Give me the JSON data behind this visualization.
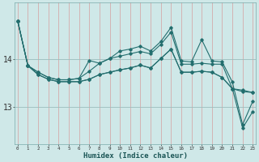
{
  "xlabel": "Humidex (Indice chaleur)",
  "background_color": "#cfe8e8",
  "line_color": "#236e6e",
  "vgrid_color": "#d4aaaa",
  "hgrid_color": "#9bbcbc",
  "x": [
    0,
    1,
    2,
    3,
    4,
    5,
    6,
    7,
    8,
    9,
    10,
    11,
    12,
    13,
    14,
    15,
    16,
    17,
    18,
    19,
    20,
    21,
    22,
    23
  ],
  "series": [
    [
      14.82,
      13.87,
      13.73,
      13.62,
      13.57,
      13.57,
      13.6,
      13.75,
      13.92,
      14.02,
      14.07,
      14.12,
      14.17,
      14.12,
      14.32,
      14.58,
      13.9,
      13.9,
      13.92,
      13.9,
      13.9,
      13.38,
      13.35,
      13.3
    ],
    [
      14.82,
      13.87,
      13.73,
      13.62,
      13.57,
      13.57,
      13.6,
      13.98,
      13.92,
      14.02,
      14.18,
      14.22,
      14.28,
      14.18,
      14.38,
      14.68,
      13.97,
      13.95,
      14.42,
      13.97,
      13.95,
      13.52,
      12.62,
      13.12
    ],
    [
      14.82,
      13.87,
      13.68,
      13.58,
      13.53,
      13.53,
      13.53,
      13.58,
      13.68,
      13.73,
      13.78,
      13.82,
      13.88,
      13.82,
      14.02,
      14.22,
      13.73,
      13.73,
      13.75,
      13.73,
      13.62,
      13.38,
      13.32,
      13.3
    ],
    [
      14.82,
      13.87,
      13.68,
      13.58,
      13.53,
      13.53,
      13.53,
      13.58,
      13.68,
      13.73,
      13.78,
      13.82,
      13.88,
      13.82,
      14.02,
      14.22,
      13.73,
      13.73,
      13.75,
      13.73,
      13.62,
      13.38,
      12.55,
      12.9
    ]
  ],
  "yticks": [
    13,
    14
  ],
  "ylim": [
    12.2,
    15.2
  ],
  "xlim": [
    -0.3,
    23.3
  ]
}
